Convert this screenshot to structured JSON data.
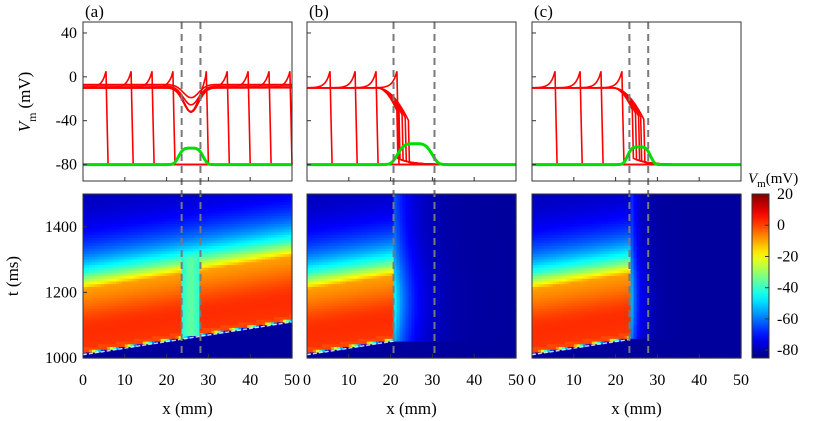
{
  "chart_data": {
    "type": "line+heatmap",
    "panels": [
      {
        "label": "(a)",
        "dashed_x": [
          23.6,
          28.1
        ],
        "top": {
          "type": "line",
          "ylabel": "V",
          "ylabel_sub": "m",
          "ylabel_unit": "(mV)",
          "xlim": [
            0,
            50
          ],
          "ylim": [
            -95,
            50
          ],
          "yticks": [
            40,
            0,
            -40,
            -80
          ],
          "ytick_labels": [
            "40",
            "0",
            "-40",
            "-80"
          ],
          "series": [
            {
              "name": "Vm snapshots",
              "color": "#ff0000",
              "front_positions": [
                6,
                12,
                17,
                22,
                30,
                35,
                40,
                45,
                50
              ],
              "block": false
            },
            {
              "name": "Vm resting",
              "color": "#00dd00",
              "rest": -80,
              "bump_peak": -65,
              "bump_center": 25.8,
              "bump_width": 3.2
            }
          ]
        },
        "bottom": {
          "type": "heatmap",
          "xlabel": "x (mm)",
          "ylabel": "t (ms)",
          "xlim": [
            0,
            50
          ],
          "ylim": [
            1000,
            1500
          ],
          "xticks": [
            0,
            10,
            20,
            30,
            40,
            50
          ],
          "yticks": [
            1000,
            1200,
            1400
          ],
          "front_start_time": 1010,
          "front_end_time": 1110
        }
      },
      {
        "label": "(b)",
        "dashed_x": [
          20.7,
          30.5
        ],
        "top": {
          "type": "line",
          "xlim": [
            0,
            50
          ],
          "ylim": [
            -95,
            50
          ],
          "yticks": [
            40,
            0,
            -40,
            -80
          ],
          "series": [
            {
              "name": "Vm snapshots",
              "color": "#ff0000",
              "front_positions": [
                6,
                12,
                17,
                22
              ],
              "block": true,
              "block_x": 26
            },
            {
              "name": "Vm resting",
              "color": "#00dd00",
              "rest": -80,
              "bump_peak": -61,
              "bump_center": 25.8,
              "bump_width": 4.5
            }
          ]
        },
        "bottom": {
          "type": "heatmap",
          "xlabel": "x (mm)",
          "xlim": [
            0,
            50
          ],
          "ylim": [
            1000,
            1500
          ],
          "xticks": [
            0,
            10,
            20,
            30,
            40,
            50
          ],
          "front_start_time": 1010,
          "block_x": 20.7
        }
      },
      {
        "label": "(c)",
        "dashed_x": [
          23.3,
          27.8
        ],
        "top": {
          "type": "line",
          "xlim": [
            0,
            50
          ],
          "ylim": [
            -95,
            50
          ],
          "yticks": [
            40,
            0,
            -40,
            -80
          ],
          "series": [
            {
              "name": "Vm snapshots",
              "color": "#ff0000",
              "front_positions": [
                6,
                12,
                17,
                22
              ],
              "block": true,
              "block_x": 26
            },
            {
              "name": "Vm resting",
              "color": "#00dd00",
              "rest": -80,
              "bump_peak": -64,
              "bump_center": 25.6,
              "bump_width": 3.0
            }
          ]
        },
        "bottom": {
          "type": "heatmap",
          "xlabel": "x (mm)",
          "xlim": [
            0,
            50
          ],
          "ylim": [
            1000,
            1500
          ],
          "xticks": [
            0,
            10,
            20,
            30,
            40,
            50
          ],
          "front_start_time": 1010,
          "block_x": 23.3
        }
      }
    ],
    "colorbar": {
      "title": "V",
      "title_sub": "m",
      "title_unit": "(mV)",
      "range": [
        -85,
        20
      ],
      "ticks": [
        20,
        0,
        -20,
        -40,
        -60,
        -80
      ],
      "tick_labels": [
        "20",
        "0",
        "-20",
        "-40",
        "-60",
        "-80"
      ]
    }
  }
}
